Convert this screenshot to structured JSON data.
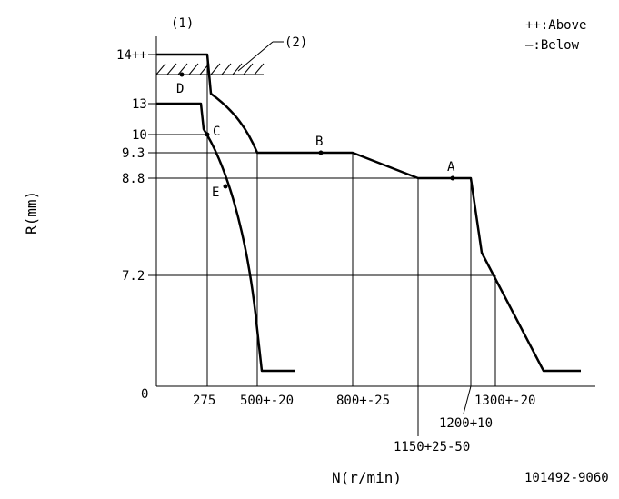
{
  "figure": {
    "label_1": "(1)",
    "label_2": "(2)",
    "legend_above": "++:Above",
    "legend_below": "—:Below",
    "y_axis_title": "R(mm)",
    "x_axis_title": "N(r/min)",
    "figure_code": "101492-9060"
  },
  "y_ticks": [
    "14++",
    "13",
    "10",
    "9.3",
    "8.8",
    "7.2",
    "0"
  ],
  "x_ticks": [
    "275",
    "500+-20",
    "800+-25",
    "1150+25-50",
    "1200+10",
    "1300+-20"
  ],
  "points": [
    "A",
    "B",
    "C",
    "D",
    "E"
  ]
}
